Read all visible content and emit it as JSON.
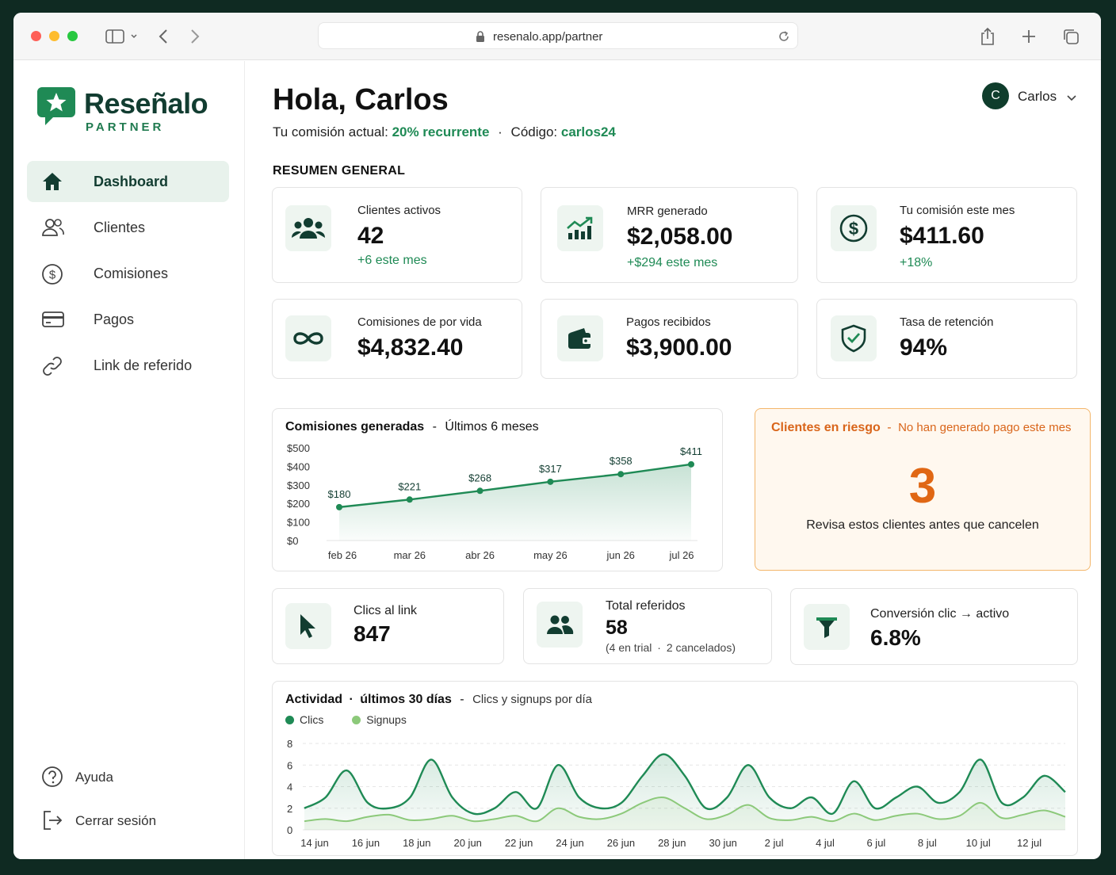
{
  "browser": {
    "url": "resenalo.app/partner"
  },
  "brand": {
    "name": "Reseñalo",
    "subtitle": "PARTNER"
  },
  "sidebar": {
    "items": [
      {
        "label": "Dashboard",
        "icon": "home-icon",
        "active": true
      },
      {
        "label": "Clientes",
        "icon": "users-icon"
      },
      {
        "label": "Comisiones",
        "icon": "dollar-circle-icon"
      },
      {
        "label": "Pagos",
        "icon": "credit-card-icon"
      },
      {
        "label": "Link de referido",
        "icon": "link-icon"
      }
    ],
    "footer": [
      {
        "label": "Ayuda",
        "icon": "help-circle-icon"
      },
      {
        "label": "Cerrar sesión",
        "icon": "logout-icon"
      }
    ]
  },
  "header": {
    "greeting": "Hola, Carlos",
    "commission_prefix": "Tu comisión actual:",
    "commission_value": "20% recurrente",
    "separator": "·",
    "code_prefix": "Código:",
    "code_value": "carlos24",
    "user_initial": "C",
    "user_name": "Carlos"
  },
  "summary": {
    "title": "RESUMEN GENERAL",
    "cards": [
      {
        "label": "Clientes activos",
        "value": "42",
        "delta": "+6 este mes",
        "icon": "users-icon"
      },
      {
        "label": "MRR generado",
        "value": "$2,058.00",
        "delta": "+$294 este mes",
        "icon": "growth-chart-icon"
      },
      {
        "label": "Tu comisión este mes",
        "value": "$411.60",
        "delta": "+18%",
        "icon": "dollar-circle-icon"
      },
      {
        "label": "Comisiones de por vida",
        "value": "$4,832.40",
        "icon": "infinity-icon"
      },
      {
        "label": "Pagos recibidos",
        "value": "$3,900.00",
        "icon": "wallet-icon"
      },
      {
        "label": "Tasa de retención",
        "value": "94%",
        "icon": "shield-check-icon"
      }
    ]
  },
  "commissions_chart": {
    "title": "Comisiones generadas",
    "dash": "-",
    "subtitle": "Últimos 6 meses"
  },
  "risk": {
    "title": "Clientes en riesgo",
    "dash": "-",
    "subtitle": "No han generado pago este mes",
    "value": "3",
    "text": "Revisa estos clientes antes que cancelen"
  },
  "metrics": [
    {
      "label": "Clics al link",
      "value": "847",
      "icon": "cursor-icon"
    },
    {
      "label": "Total referidos",
      "value": "58",
      "note_a": "(4 en trial",
      "note_sep": "·",
      "note_b": "2 cancelados)",
      "icon": "users-icon"
    },
    {
      "label": "Conversión clic → activo",
      "value": "6.8%",
      "icon": "funnel-icon"
    }
  ],
  "activity_chart": {
    "title": "Actividad",
    "dash": "·",
    "title_b": "últimos 30 días",
    "dash2": "-",
    "subtitle": "Clics y signups por día"
  },
  "colors": {
    "brand_dark": "#123d31",
    "accent": "#1f8a55",
    "signups": "#8cc97a",
    "warning": "#e06714"
  },
  "chart_data": [
    {
      "type": "area",
      "categories": [
        "feb 26",
        "mar 26",
        "abr 26",
        "may 26",
        "jun 26",
        "jul 26"
      ],
      "values": [
        180,
        221,
        268,
        317,
        358,
        411
      ],
      "data_labels": [
        "$180",
        "$221",
        "$268",
        "$317",
        "$358",
        "$411"
      ],
      "y_ticks": [
        "$500",
        "$400",
        "$300",
        "$200",
        "$100",
        "$0"
      ],
      "ylim": [
        0,
        500
      ],
      "grid": false,
      "legend": "none"
    },
    {
      "type": "area",
      "x_ticks": [
        "14 jun",
        "16 jun",
        "18 jun",
        "20 jun",
        "22 jun",
        "24 jun",
        "26 jun",
        "28 jun",
        "30 jun",
        "2 jul",
        "4 jul",
        "6 jul",
        "8 jul",
        "10 jul",
        "12 jul"
      ],
      "y_ticks": [
        "8",
        "6",
        "4",
        "2",
        "0"
      ],
      "ylim": [
        0,
        8
      ],
      "grid": true,
      "legend": "top-left",
      "series": [
        {
          "name": "Clics",
          "values": [
            2,
            3,
            5.5,
            2.5,
            2,
            3,
            6.5,
            3,
            1.5,
            2,
            3.5,
            2,
            6,
            3,
            2,
            2.5,
            5,
            7,
            5,
            2,
            3,
            6,
            3,
            2,
            3,
            1.5,
            4.5,
            2,
            3,
            4,
            2.5,
            3.5,
            6.5,
            2.5,
            3,
            5,
            3.5
          ]
        },
        {
          "name": "Signups",
          "values": [
            0.8,
            1,
            0.8,
            1.2,
            1.4,
            0.9,
            1,
            1.3,
            0.8,
            1,
            1.3,
            0.8,
            2,
            1.2,
            1,
            1.5,
            2.5,
            3,
            2,
            1,
            1.4,
            2.3,
            1.1,
            0.9,
            1.2,
            0.8,
            1.5,
            0.9,
            1.3,
            1.5,
            1,
            1.3,
            2.5,
            1.1,
            1.4,
            1.8,
            1.2
          ]
        }
      ]
    }
  ]
}
